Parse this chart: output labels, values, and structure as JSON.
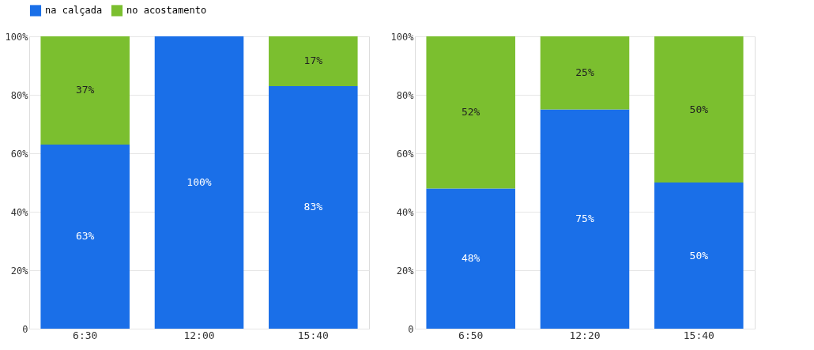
{
  "chart_data": [
    {
      "type": "bar",
      "stacked": true,
      "categories": [
        "6:30",
        "12:00",
        "15:40"
      ],
      "ylim": [
        0,
        100
      ],
      "yticks": [
        0,
        {
          "value": 20,
          "label": "20%"
        },
        {
          "value": 40,
          "label": "40%"
        },
        {
          "value": 60,
          "label": "60%"
        },
        {
          "value": 80,
          "label": "80%"
        },
        {
          "value": 100,
          "label": "100%"
        }
      ],
      "grid": "y",
      "legend": "top",
      "series": [
        {
          "name": "na calçada",
          "color": "#1a6fe8",
          "values": [
            63,
            100,
            83
          ],
          "value_labels": [
            "63%",
            "100%",
            "83%"
          ]
        },
        {
          "name": "no acostamento",
          "color": "#7bbf2f",
          "values": [
            37,
            0,
            17
          ],
          "value_labels": [
            "37%",
            null,
            "17%"
          ]
        }
      ]
    },
    {
      "type": "bar",
      "stacked": true,
      "categories": [
        "6:50",
        "12:20",
        "15:40"
      ],
      "ylim": [
        0,
        100
      ],
      "yticks": [
        0,
        {
          "value": 20,
          "label": "20%"
        },
        {
          "value": 40,
          "label": "40%"
        },
        {
          "value": 60,
          "label": "60%"
        },
        {
          "value": 80,
          "label": "80%"
        },
        {
          "value": 100,
          "label": "100%"
        }
      ],
      "grid": "y",
      "legend": "top",
      "series": [
        {
          "name": "na calçada",
          "color": "#1a6fe8",
          "values": [
            48,
            75,
            50
          ],
          "value_labels": [
            "48%",
            "75%",
            "50%"
          ]
        },
        {
          "name": "no acostamento",
          "color": "#7bbf2f",
          "values": [
            52,
            25,
            50
          ],
          "value_labels": [
            "52%",
            "25%",
            "50%"
          ]
        }
      ]
    }
  ]
}
